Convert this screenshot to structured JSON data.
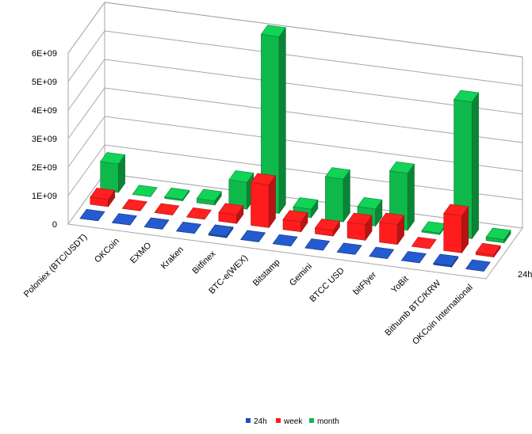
{
  "chart_data": {
    "type": "bar",
    "style": "3d-column",
    "categories": [
      "Poloniex (BTC/USDT)",
      "OKCoin",
      "EXMO",
      "Kraken",
      "Bitfinex",
      "BTC-e(WEX)",
      "Bitstamp",
      "Gemini",
      "BTCC USD",
      "bitFlyer",
      "YoBit",
      "Bithumb BTC/KRW",
      "OKCoin International"
    ],
    "series": [
      {
        "name": "24h",
        "color": "#1f4fb5",
        "values": [
          0,
          0,
          0,
          0,
          50000000,
          0,
          0,
          0,
          0,
          0,
          0,
          50000000,
          0
        ]
      },
      {
        "name": "week",
        "color": "#ff1c1c",
        "values": [
          250000000,
          0,
          0,
          0,
          300000000,
          1500000000,
          350000000,
          200000000,
          550000000,
          700000000,
          0,
          1300000000,
          80000000
        ]
      },
      {
        "name": "month",
        "color": "#0fb84b",
        "values": [
          1000000000,
          0,
          50000000,
          150000000,
          950000000,
          6200000000,
          300000000,
          1500000000,
          600000000,
          2000000000,
          50000000,
          4800000000,
          120000000
        ]
      }
    ],
    "y_ticks": [
      "0",
      "1E+09",
      "2E+09",
      "3E+09",
      "4E+09",
      "5E+09",
      "6E+09"
    ],
    "ylim": [
      0,
      6000000000
    ],
    "depth_axis_label": "24h",
    "grid": true,
    "legend_position": "bottom"
  }
}
